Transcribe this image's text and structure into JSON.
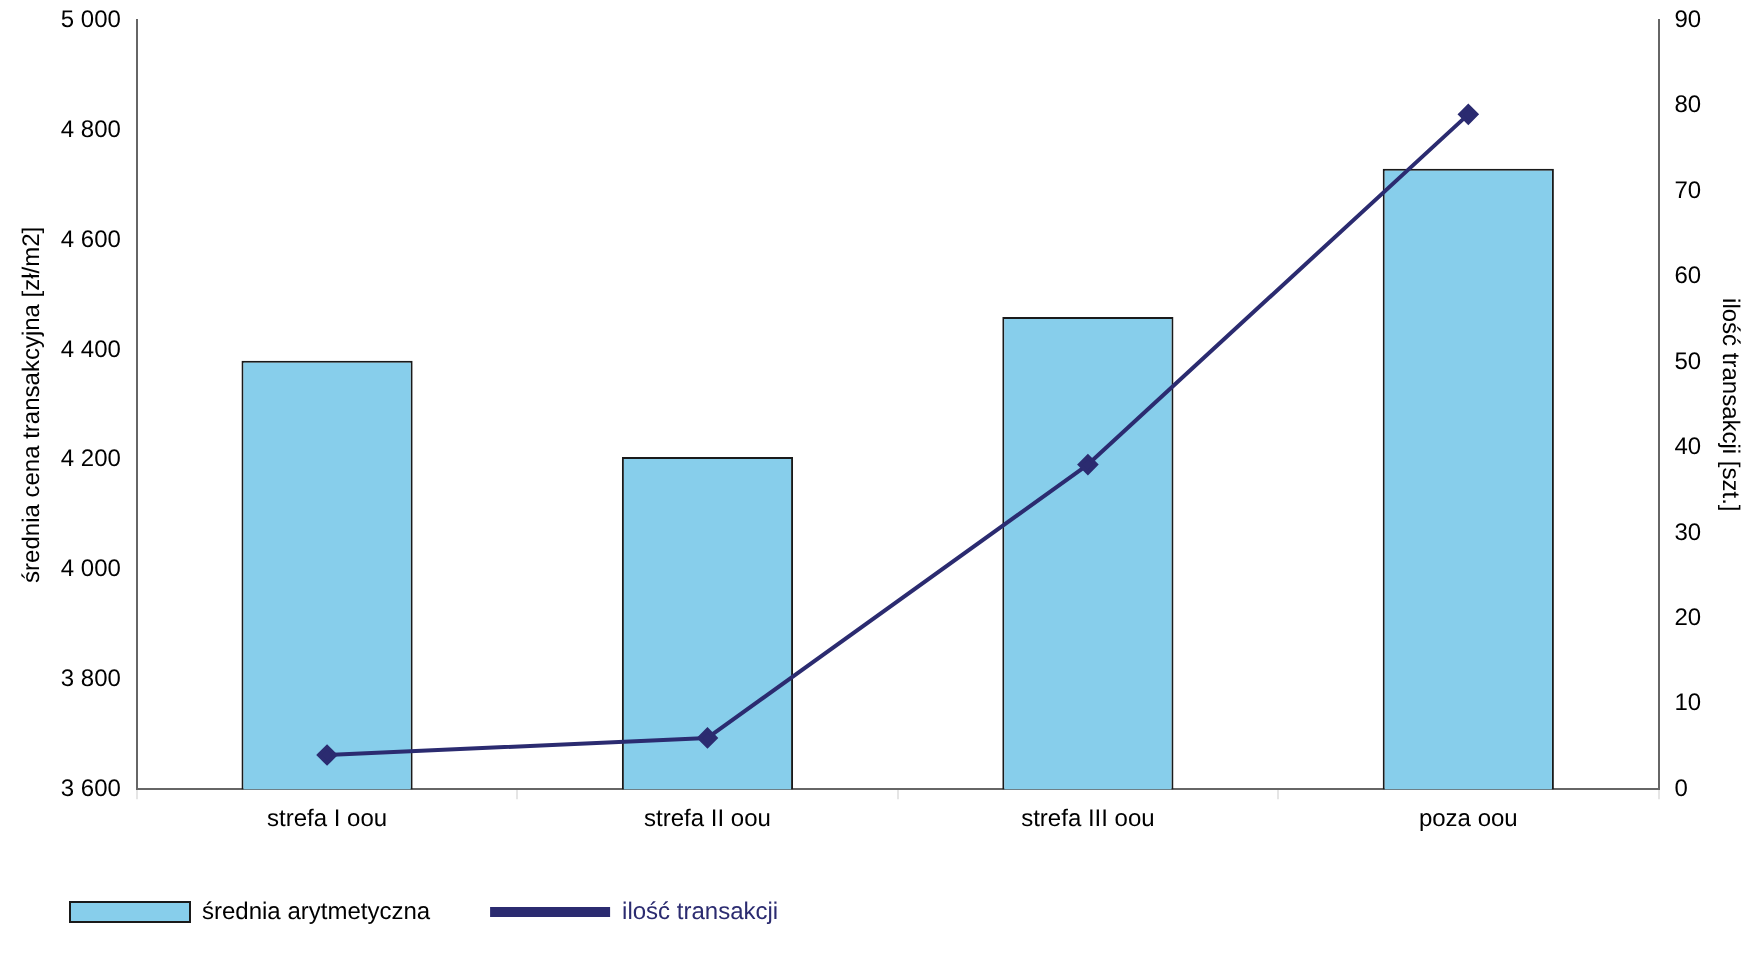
{
  "chart_data": {
    "type": "bar",
    "categories": [
      "strefa I oou",
      "strefa II oou",
      "strefa III oou",
      "poza oou"
    ],
    "series": [
      {
        "name": "średnia arytmetyczna",
        "color": "#87ceeb",
        "values": [
          4380,
          4205,
          4460,
          4730
        ]
      },
      {
        "name": "ilość transakcji",
        "type": "line",
        "axis": "y2",
        "color": "#2b2b70",
        "values": [
          4,
          6,
          38,
          79
        ]
      }
    ],
    "ylabel": "średnia cena transakcyjna [zł/m2]",
    "y2label": "ilość transakcji [szt.]",
    "ylim": [
      3600,
      5000
    ],
    "yticks": [
      {
        "value": 3600,
        "label": "3 600"
      },
      {
        "value": 3800,
        "label": "3 800"
      },
      {
        "value": 4000,
        "label": "4 000"
      },
      {
        "value": 4200,
        "label": "4 200"
      },
      {
        "value": 4400,
        "label": "4 400"
      },
      {
        "value": 4600,
        "label": "4 600"
      },
      {
        "value": 4800,
        "label": "4 800"
      },
      {
        "value": 5000,
        "label": "5 000"
      }
    ],
    "y2lim": [
      0,
      90
    ],
    "y2ticks": [
      0,
      10,
      20,
      30,
      40,
      50,
      60,
      70,
      80,
      90
    ],
    "grid": false,
    "legend": "bottom",
    "marker": "diamond",
    "line_style": "solid"
  }
}
